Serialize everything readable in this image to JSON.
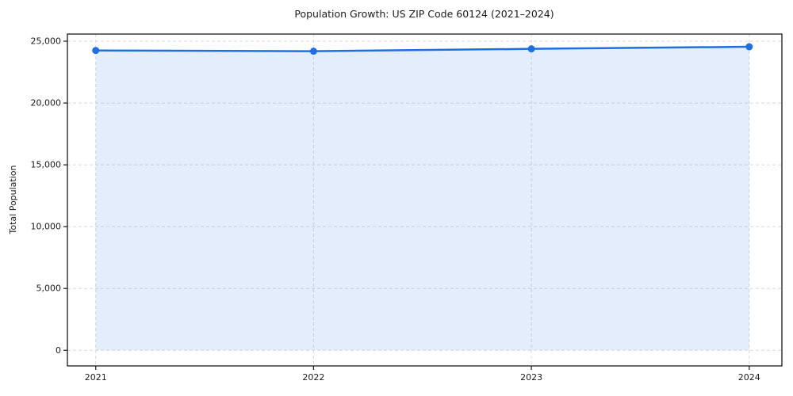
{
  "chart_data": {
    "type": "area",
    "title": "Population Growth: US ZIP Code 60124 (2021–2024)",
    "ylabel": "Total Population",
    "xlabel": "",
    "x": [
      2021,
      2022,
      2023,
      2024
    ],
    "x_tick_labels": [
      "2021",
      "2022",
      "2023",
      "2024"
    ],
    "series": [
      {
        "name": "Total Population",
        "values": [
          24250,
          24190,
          24380,
          24550
        ]
      }
    ],
    "xlim": [
      2020.87,
      2024.15
    ],
    "ylim": [
      -1263,
      25577
    ],
    "yticks": [
      0,
      5000,
      10000,
      15000,
      20000,
      25000
    ],
    "y_tick_labels": [
      "0",
      "5,000",
      "10,000",
      "15,000",
      "20,000",
      "25,000"
    ],
    "grid": true,
    "grid_style": "dashed",
    "legend": "none",
    "colors": {
      "line": "#1f6fde",
      "marker": "#1f6fde",
      "fill": "rgba(31,111,222,0.12)",
      "grid": "#d9d9d9",
      "axis": "#1a1a1a",
      "text": "#1a1a1a",
      "background": "#ffffff"
    }
  }
}
